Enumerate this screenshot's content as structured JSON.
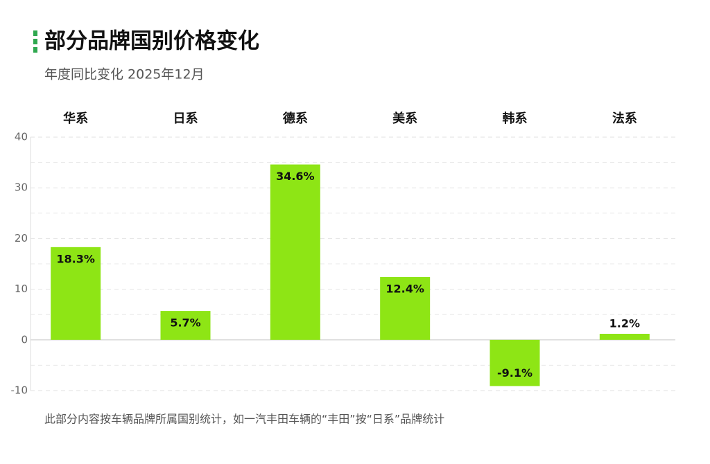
{
  "chart_data": {
    "type": "bar",
    "title": "部分品牌国别价格变化",
    "subtitle": "年度同比变化 2025年12月",
    "categories": [
      "华系",
      "日系",
      "德系",
      "美系",
      "韩系",
      "法系"
    ],
    "values": [
      18.3,
      5.7,
      34.6,
      12.4,
      -9.1,
      1.2
    ],
    "value_labels": [
      "18.3%",
      "5.7%",
      "34.6%",
      "12.4%",
      "-9.1%",
      "1.2%"
    ],
    "color": "#8ee515",
    "ylim": [
      -10,
      40
    ],
    "yticks": [
      -10,
      0,
      10,
      20,
      30,
      40
    ],
    "grid": true,
    "note": "此部分内容按车辆品牌所属国别统计，如一汽丰田车辆的“丰田”按“日系”品牌统计"
  }
}
